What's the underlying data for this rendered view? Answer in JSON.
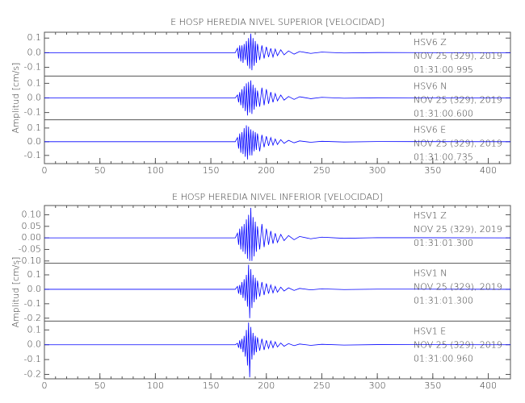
{
  "chart_data": [
    {
      "type": "line",
      "title": "E HOSP HEREDIA NIVEL SUPERIOR [VELOCIDAD]",
      "ylabel": "Amplitud [cm/s]",
      "xlim": [
        0,
        420
      ],
      "xticks": [
        0,
        50,
        100,
        150,
        200,
        250,
        300,
        350,
        400
      ],
      "x": [
        0,
        172,
        174,
        175,
        176,
        177,
        178,
        179,
        180,
        181,
        182,
        183,
        184,
        185,
        186,
        187,
        188,
        189,
        190,
        191,
        192,
        194,
        196,
        198,
        200,
        202,
        204,
        206,
        208,
        210,
        213,
        216,
        220,
        225,
        230,
        240,
        250,
        270,
        300,
        420
      ],
      "series": [
        {
          "name": "HSV6   Z",
          "labels": [
            "NOV 25 (329), 2019",
            "01:31:00.995"
          ],
          "color": "#0000ff",
          "ylim": [
            -0.16,
            0.14
          ],
          "yticks": [
            0.1,
            {
              "value": 0,
              "label": "0.0"
            },
            -0.1
          ],
          "values": [
            0,
            0,
            0.03,
            -0.04,
            0.05,
            -0.06,
            0.05,
            -0.07,
            0.06,
            -0.05,
            0.08,
            -0.09,
            0.1,
            -0.11,
            0.13,
            -0.12,
            0.1,
            -0.09,
            0.08,
            -0.07,
            0.06,
            -0.05,
            0.05,
            -0.04,
            0.04,
            -0.03,
            0.03,
            -0.03,
            0.025,
            -0.02,
            0.02,
            -0.015,
            0.012,
            -0.01,
            0.008,
            -0.005,
            0.004,
            -0.002,
            0.001,
            0
          ]
        },
        {
          "name": "HSV6   N",
          "labels": [
            "NOV 25 (329), 2019",
            "01:31:00.600"
          ],
          "color": "#0000ff",
          "ylim": [
            -0.15,
            0.15
          ],
          "yticks": [
            0.1,
            {
              "value": 0,
              "label": "0.0"
            },
            -0.1
          ],
          "values": [
            0,
            0,
            0.02,
            -0.03,
            0.04,
            -0.05,
            0.06,
            -0.07,
            0.08,
            -0.09,
            0.1,
            -0.12,
            0.11,
            -0.1,
            0.12,
            -0.11,
            0.09,
            -0.08,
            0.07,
            -0.06,
            0.05,
            -0.06,
            0.07,
            -0.05,
            0.06,
            -0.04,
            0.04,
            -0.03,
            0.03,
            -0.02,
            0.02,
            -0.015,
            0.01,
            -0.01,
            0.008,
            -0.005,
            0.004,
            -0.002,
            0.001,
            0
          ]
        },
        {
          "name": "HSV6   E",
          "labels": [
            "NOV 25 (329), 2019",
            "01:31:00.735"
          ],
          "color": "#0000ff",
          "ylim": [
            -0.16,
            0.16
          ],
          "yticks": [
            0.1,
            {
              "value": 0,
              "label": "0.0"
            },
            -0.1
          ],
          "values": [
            0,
            0,
            0.03,
            -0.05,
            0.06,
            -0.08,
            0.07,
            -0.09,
            0.1,
            -0.11,
            0.12,
            -0.13,
            0.11,
            -0.1,
            0.09,
            -0.1,
            0.08,
            -0.07,
            0.07,
            -0.06,
            0.06,
            -0.07,
            0.05,
            -0.04,
            0.04,
            -0.03,
            0.03,
            -0.025,
            0.02,
            -0.02,
            0.015,
            -0.012,
            0.01,
            -0.008,
            0.006,
            -0.004,
            0.003,
            -0.002,
            0.001,
            0
          ]
        }
      ]
    },
    {
      "type": "line",
      "title": "E HOSP HEREDIA NIVEL INFERIOR [VELOCIDAD]",
      "ylabel": "Amplitud [cm/s]",
      "xlim": [
        0,
        420
      ],
      "xticks": [
        0,
        50,
        100,
        150,
        200,
        250,
        300,
        350,
        400
      ],
      "x": [
        0,
        172,
        174,
        175,
        176,
        177,
        178,
        179,
        180,
        181,
        182,
        183,
        184,
        185,
        186,
        187,
        188,
        189,
        190,
        191,
        192,
        194,
        196,
        198,
        200,
        202,
        204,
        206,
        208,
        210,
        213,
        216,
        220,
        225,
        230,
        240,
        250,
        270,
        300,
        420
      ],
      "series": [
        {
          "name": "HSV1   Z",
          "labels": [
            "NOV 25 (329), 2019",
            "01:31:01.300"
          ],
          "color": "#0000ff",
          "ylim": [
            -0.11,
            0.14
          ],
          "yticks": [
            {
              "value": 0.1,
              "label": "0.10"
            },
            0.05,
            {
              "value": 0,
              "label": "0.00"
            },
            -0.05,
            {
              "value": -0.1,
              "label": "-0.10"
            }
          ],
          "values": [
            0,
            0,
            0.02,
            -0.03,
            0.04,
            -0.05,
            0.05,
            -0.06,
            0.06,
            -0.07,
            0.08,
            -0.09,
            0.1,
            -0.1,
            0.13,
            -0.1,
            0.09,
            -0.08,
            0.07,
            -0.06,
            0.05,
            -0.05,
            0.06,
            -0.04,
            0.04,
            -0.03,
            0.03,
            -0.025,
            0.02,
            -0.02,
            0.015,
            -0.012,
            0.01,
            -0.008,
            0.006,
            -0.004,
            0.003,
            -0.002,
            0.001,
            0
          ]
        },
        {
          "name": "HSV1   N",
          "labels": [
            "NOV 25 (329), 2019",
            "01:31:01.300"
          ],
          "color": "#0000ff",
          "ylim": [
            -0.22,
            0.18
          ],
          "yticks": [
            0.1,
            {
              "value": 0,
              "label": "0.0"
            },
            -0.1,
            -0.2
          ],
          "values": [
            0,
            0,
            0.02,
            -0.03,
            0.03,
            -0.04,
            0.05,
            -0.06,
            0.07,
            -0.08,
            0.1,
            -0.12,
            0.17,
            -0.2,
            0.14,
            -0.13,
            0.1,
            -0.09,
            0.08,
            -0.07,
            0.06,
            -0.05,
            0.05,
            -0.04,
            0.04,
            -0.03,
            0.03,
            -0.025,
            0.02,
            -0.02,
            0.015,
            -0.012,
            0.01,
            -0.008,
            0.006,
            -0.004,
            0.003,
            -0.002,
            0.001,
            0
          ]
        },
        {
          "name": "HSV1   E",
          "labels": [
            "NOV 25 (329), 2019",
            "01:31:00.960"
          ],
          "color": "#0000ff",
          "ylim": [
            -0.23,
            0.16
          ],
          "yticks": [
            0.1,
            {
              "value": 0,
              "label": "0.0"
            },
            -0.1,
            -0.2
          ],
          "values": [
            0,
            0,
            0.01,
            -0.02,
            0.03,
            -0.03,
            0.04,
            -0.05,
            0.06,
            -0.08,
            0.1,
            -0.14,
            0.15,
            -0.22,
            0.12,
            -0.1,
            0.08,
            -0.07,
            0.06,
            -0.05,
            0.05,
            -0.04,
            0.04,
            -0.035,
            0.03,
            -0.025,
            0.025,
            -0.02,
            0.02,
            -0.015,
            0.012,
            -0.01,
            0.008,
            -0.006,
            0.005,
            -0.004,
            0.003,
            -0.002,
            0.001,
            0
          ]
        }
      ]
    }
  ]
}
